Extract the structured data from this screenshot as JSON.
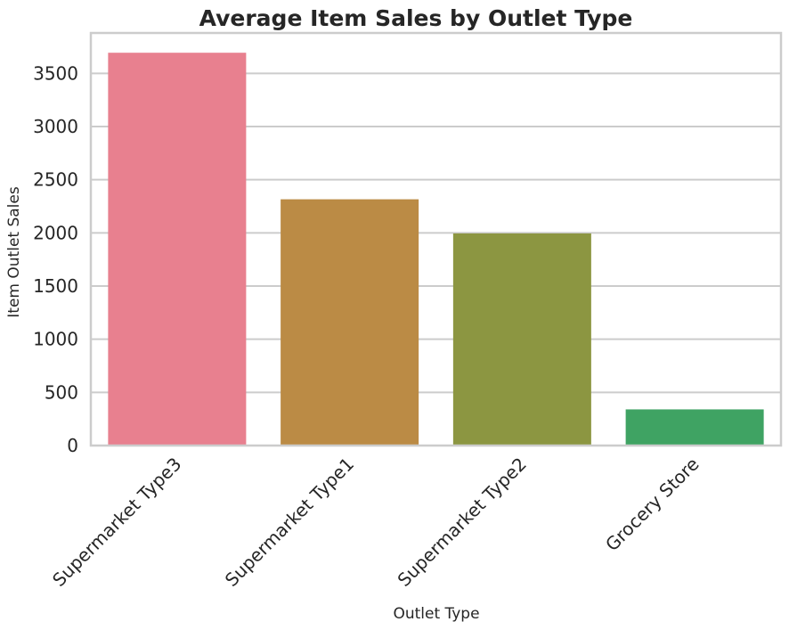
{
  "chart_data": {
    "type": "bar",
    "title": "Average Item Sales by Outlet Type",
    "xlabel": "Outlet Type",
    "ylabel": "Item Outlet Sales",
    "categories": [
      "Supermarket Type3",
      "Supermarket Type1",
      "Supermarket Type2",
      "Grocery Store"
    ],
    "values": [
      3694,
      2316,
      1995,
      340
    ],
    "colors": [
      "#e8808f",
      "#bb8b45",
      "#8c9641",
      "#3fa363"
    ],
    "ylim": [
      0,
      3880
    ],
    "yticks": [
      0,
      500,
      1000,
      1500,
      2000,
      2500,
      3000,
      3500
    ],
    "grid": "horizontal",
    "xtick_rotation": 45,
    "legend": "none"
  }
}
